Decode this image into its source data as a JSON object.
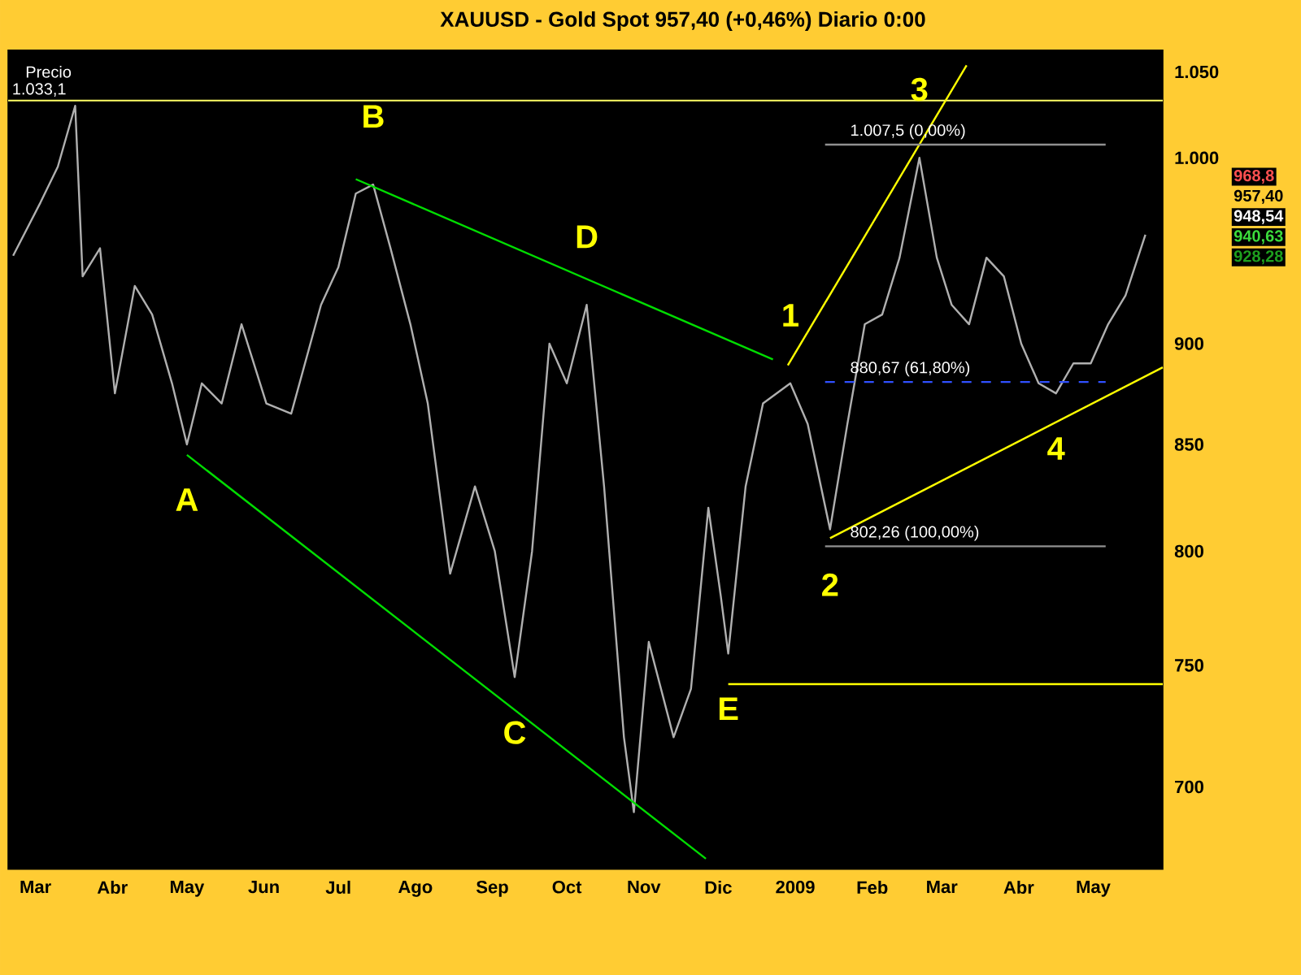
{
  "chart_data": {
    "type": "line",
    "title": "XAUUSD - Gold Spot    957,40 (+0,46%)    Diario  0:00",
    "ylabel": "Precio",
    "log": "y",
    "grid": false,
    "xlim": [
      "2008-02-19",
      "2009-05-29"
    ],
    "ylim": [
      668,
      1063
    ],
    "xticks": [
      {
        "value": "2008-03-01",
        "label": "Mar"
      },
      {
        "value": "2008-04-01",
        "label": "Abr"
      },
      {
        "value": "2008-05-01",
        "label": "May"
      },
      {
        "value": "2008-06-01",
        "label": "Jun"
      },
      {
        "value": "2008-07-01",
        "label": "Jul"
      },
      {
        "value": "2008-08-01",
        "label": "Ago"
      },
      {
        "value": "2008-09-01",
        "label": "Sep"
      },
      {
        "value": "2008-10-01",
        "label": "Oct"
      },
      {
        "value": "2008-11-01",
        "label": "Nov"
      },
      {
        "value": "2008-12-01",
        "label": "Dic"
      },
      {
        "value": "2009-01-01",
        "label": "**2009**"
      },
      {
        "value": "2009-02-01",
        "label": "Feb"
      },
      {
        "value": "2009-03-01",
        "label": "Mar"
      },
      {
        "value": "2009-04-01",
        "label": "Abr"
      },
      {
        "value": "2009-05-01",
        "label": "May"
      }
    ],
    "yticks": [
      700,
      750,
      800,
      850,
      900,
      {
        "value": 1000,
        "label": "1.000"
      },
      {
        "value": 1050,
        "label": "1.050"
      }
    ],
    "ref_lines": [
      {
        "axis": "y",
        "value": 1033.1,
        "label": "1.033,1",
        "color": "#ffff66"
      }
    ],
    "series": [
      {
        "color": "#b0b0b0",
        "x": [
          "2008-02-21",
          "2008-03-03",
          "2008-03-10",
          "2008-03-17",
          "2008-03-20",
          "2008-03-27",
          "2008-04-02",
          "2008-04-10",
          "2008-04-17",
          "2008-04-25",
          "2008-05-01",
          "2008-05-07",
          "2008-05-15",
          "2008-05-23",
          "2008-06-02",
          "2008-06-12",
          "2008-06-24",
          "2008-07-01",
          "2008-07-08",
          "2008-07-15",
          "2008-07-22",
          "2008-07-30",
          "2008-08-06",
          "2008-08-15",
          "2008-08-25",
          "2008-09-02",
          "2008-09-10",
          "2008-09-17",
          "2008-09-24",
          "2008-10-01",
          "2008-10-09",
          "2008-10-16",
          "2008-10-24",
          "2008-10-28",
          "2008-11-03",
          "2008-11-13",
          "2008-11-20",
          "2008-11-27",
          "2008-12-02",
          "2008-12-05",
          "2008-12-12",
          "2008-12-19",
          "2008-12-30",
          "2009-01-06",
          "2009-01-15",
          "2009-01-22",
          "2009-01-29",
          "2009-02-05",
          "2009-02-12",
          "2009-02-20",
          "2009-02-27",
          "2009-03-05",
          "2009-03-12",
          "2009-03-19",
          "2009-03-26",
          "2009-04-02",
          "2009-04-09",
          "2009-04-16",
          "2009-04-23",
          "2009-04-30",
          "2009-05-07",
          "2009-05-14",
          "2009-05-22"
        ],
        "values": [
          946,
          975,
          995,
          1030,
          935,
          950,
          875,
          930,
          915,
          880,
          850,
          880,
          870,
          910,
          870,
          865,
          920,
          940,
          980,
          985,
          950,
          910,
          870,
          790,
          830,
          800,
          745,
          800,
          900,
          880,
          920,
          830,
          720,
          690,
          760,
          720,
          740,
          820,
          780,
          755,
          830,
          870,
          880,
          860,
          810,
          860,
          910,
          915,
          945,
          1000,
          945,
          920,
          910,
          945,
          935,
          900,
          880,
          875,
          890,
          890,
          910,
          925,
          957.4
        ]
      },
      {
        "type": "line",
        "color": "#00dd00",
        "x": [
          "2008-07-08",
          "2008-12-23"
        ],
        "values": [
          988,
          892
        ]
      },
      {
        "type": "line",
        "color": "#00dd00",
        "x": [
          "2008-05-01",
          "2008-11-26"
        ],
        "values": [
          845,
          672
        ]
      },
      {
        "type": "line",
        "color": "#ffff00",
        "x": [
          "2008-12-29",
          "2009-03-11"
        ],
        "values": [
          889,
          1054
        ]
      },
      {
        "type": "line",
        "color": "#ffff00",
        "x": [
          "2009-01-15",
          "2009-05-29"
        ],
        "values": [
          806,
          888
        ]
      },
      {
        "type": "line",
        "color": "#ffff00",
        "x": [
          "2008-12-05",
          "2009-05-29"
        ],
        "values": [
          742,
          742
        ]
      },
      {
        "type": "line",
        "name": "1.007,5 (0,00%)",
        "color": "#909090",
        "x": [
          "2009-01-13",
          "2009-05-06"
        ],
        "values": [
          1007.5,
          1007.5
        ]
      },
      {
        "type": "line",
        "name": "880,67 (61,80%)",
        "color": "#3050ff",
        "line_style": "dashed",
        "x": [
          "2009-01-13",
          "2009-05-06"
        ],
        "values": [
          880.67,
          880.67
        ]
      },
      {
        "type": "line",
        "name": "802,26 (100,00%)",
        "color": "#909090",
        "x": [
          "2009-01-13",
          "2009-05-06"
        ],
        "values": [
          802.26,
          802.26
        ]
      }
    ],
    "annotations": [
      {
        "text": "A",
        "x": "2008-05-01",
        "y": 850
      },
      {
        "text": "B",
        "x": "2008-07-15",
        "y": 985
      },
      {
        "text": "C",
        "x": "2008-09-10",
        "y": 745
      },
      {
        "text": "D",
        "x": "2008-10-09",
        "y": 920
      },
      {
        "text": "E",
        "x": "2008-12-05",
        "y": 755
      },
      {
        "text": "1",
        "x": "2008-12-30",
        "y": 880
      },
      {
        "text": "2",
        "x": "2009-01-15",
        "y": 810
      },
      {
        "text": "3",
        "x": "2009-02-20",
        "y": 1000
      },
      {
        "text": "4",
        "x": "2009-04-16",
        "y": 875
      },
      "968,8",
      "957,40",
      "948,54",
      "940,63",
      "928,28"
    ]
  }
}
